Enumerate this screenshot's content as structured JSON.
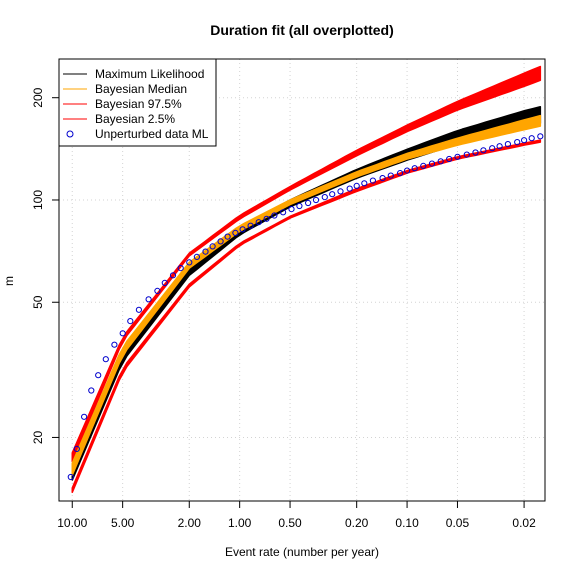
{
  "chart_data": {
    "type": "line",
    "title": "Duration fit (all overplotted)",
    "xlabel": "Event rate (number per year)",
    "ylabel": "m",
    "x_scale": "log-reversed",
    "y_scale": "log",
    "xlim": [
      12.0,
      0.015
    ],
    "ylim": [
      13.0,
      260.0
    ],
    "x_ticks": [
      {
        "value": 10,
        "label": "10.00"
      },
      {
        "value": 5,
        "label": "5.00"
      },
      {
        "value": 2,
        "label": "2.00"
      },
      {
        "value": 1,
        "label": "1.00"
      },
      {
        "value": 0.5,
        "label": "0.50"
      },
      {
        "value": 0.2,
        "label": "0.20"
      },
      {
        "value": 0.1,
        "label": "0.10"
      },
      {
        "value": 0.05,
        "label": "0.05"
      },
      {
        "value": 0.02,
        "label": "0.02"
      }
    ],
    "y_ticks": [
      {
        "value": 20,
        "label": "20"
      },
      {
        "value": 50,
        "label": "50"
      },
      {
        "value": 100,
        "label": "100"
      },
      {
        "value": 200,
        "label": "200"
      }
    ],
    "grid": true,
    "legend_position": "top-left",
    "colors": {
      "ml": "#000000",
      "median": "#FFA500",
      "upper": "#FF0000",
      "lower": "#FF0000",
      "points": "#0000CD"
    },
    "series": [
      {
        "name": "Maximum Likelihood",
        "style": "line",
        "color": "#000000",
        "x": [
          10,
          5,
          2,
          1,
          0.5,
          0.2,
          0.1,
          0.05,
          0.02,
          0.016
        ],
        "y": [
          15.5,
          35,
          62,
          81,
          98,
          120,
          137,
          154,
          175,
          180
        ],
        "band": [
          [
            15,
            16.5
          ],
          [
            33.5,
            36.5
          ],
          [
            60,
            64
          ],
          [
            79,
            83
          ],
          [
            95.5,
            100
          ],
          [
            116,
            123
          ],
          [
            131,
            141
          ],
          [
            146,
            160
          ],
          [
            164,
            183
          ],
          [
            168,
            188
          ]
        ]
      },
      {
        "name": "Bayesian Median",
        "style": "line",
        "color": "#FFA500",
        "x": [
          10,
          5,
          2,
          1,
          0.5,
          0.2,
          0.1,
          0.05,
          0.02,
          0.016
        ],
        "y": [
          16,
          36,
          64,
          82,
          98,
          119,
          134,
          148,
          166,
          170
        ],
        "band": [
          [
            15.5,
            16.8
          ],
          [
            35,
            37
          ],
          [
            63,
            65.5
          ],
          [
            81,
            84
          ],
          [
            97,
            100
          ],
          [
            117,
            121
          ],
          [
            132,
            137
          ],
          [
            145,
            152
          ],
          [
            161,
            172
          ],
          [
            165,
            177
          ]
        ]
      },
      {
        "name": "Bayesian 97.5%",
        "style": "line",
        "color": "#FF0000",
        "x": [
          10,
          5,
          2,
          1,
          0.5,
          0.2,
          0.1,
          0.05,
          0.02,
          0.016
        ],
        "y": [
          17.5,
          39,
          69,
          89,
          108,
          137,
          162,
          189,
          225,
          235
        ],
        "band": [
          [
            17,
            18
          ],
          [
            38.5,
            39.5
          ],
          [
            68.5,
            69.7
          ],
          [
            88,
            90
          ],
          [
            107,
            109.5
          ],
          [
            135,
            140
          ],
          [
            159,
            166
          ],
          [
            184,
            195
          ],
          [
            216,
            236
          ],
          [
            225,
            247
          ]
        ]
      },
      {
        "name": "Bayesian 2.5%",
        "style": "line",
        "color": "#FF0000",
        "x": [
          10,
          5,
          2,
          1,
          0.5,
          0.2,
          0.1,
          0.05,
          0.02,
          0.016
        ],
        "y": [
          14,
          31.5,
          56,
          74,
          89,
          107,
          121,
          133,
          146,
          149
        ],
        "band": [
          [
            13.8,
            14.2
          ],
          [
            31.2,
            32
          ],
          [
            55.5,
            56.5
          ],
          [
            73.5,
            74.5
          ],
          [
            88.5,
            89.5
          ],
          [
            106,
            108
          ],
          [
            120,
            122
          ],
          [
            132,
            134
          ],
          [
            145,
            147
          ],
          [
            148,
            150
          ]
        ]
      },
      {
        "name": "Unperturbed data ML",
        "style": "points",
        "color": "#0000CD",
        "x": [
          10.2,
          9.4,
          8.5,
          7.7,
          7.0,
          6.3,
          5.6,
          5.0,
          4.5,
          4.0,
          3.5,
          3.1,
          2.8,
          2.5,
          2.25,
          2.0,
          1.8,
          1.6,
          1.45,
          1.3,
          1.18,
          1.06,
          0.96,
          0.86,
          0.77,
          0.69,
          0.62,
          0.55,
          0.49,
          0.44,
          0.39,
          0.35,
          0.31,
          0.28,
          0.25,
          0.22,
          0.2,
          0.18,
          0.16,
          0.14,
          0.125,
          0.11,
          0.1,
          0.09,
          0.08,
          0.071,
          0.063,
          0.056,
          0.05,
          0.044,
          0.039,
          0.035,
          0.031,
          0.028,
          0.025,
          0.022,
          0.02,
          0.018,
          0.016
        ],
        "y": [
          15.3,
          18.5,
          23,
          27.5,
          30.5,
          34,
          37.5,
          40.5,
          44,
          47.5,
          51,
          54,
          57,
          60,
          63,
          65.5,
          68,
          70.5,
          73,
          75.5,
          78,
          80,
          82,
          84,
          86,
          88,
          90,
          92,
          94,
          96,
          98,
          100,
          102,
          104,
          106,
          108,
          110,
          112,
          114,
          116,
          118,
          120,
          122,
          124,
          126,
          128,
          130,
          132,
          134,
          136,
          138,
          140,
          142,
          144,
          146,
          148,
          150,
          152,
          154
        ]
      }
    ]
  }
}
